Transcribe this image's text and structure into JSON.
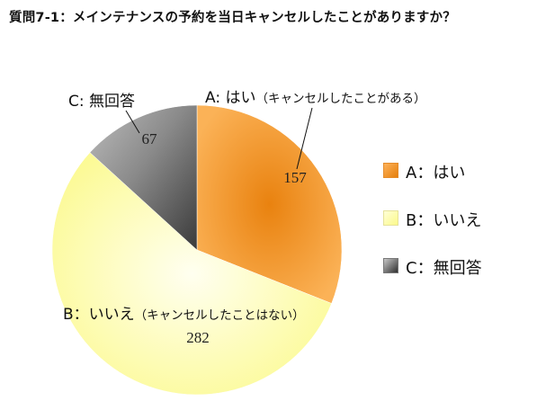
{
  "chart_data": {
    "type": "pie",
    "title": "質問7-1：メインテナンスの予約を当日キャンセルしたことがありますか？",
    "slices": [
      {
        "key": "A",
        "legend": "A：はい",
        "label": "A: はい",
        "note": "（キャンセルしたことがある）",
        "value": 157,
        "color": "#f7941e"
      },
      {
        "key": "B",
        "legend": "B：いいえ",
        "label": "B：いいえ",
        "note": "（キャンセルしたことはない）",
        "value": 282,
        "color": "#ffffa8"
      },
      {
        "key": "C",
        "legend": "C：無回答",
        "label": "C: 無回答",
        "note": "",
        "value": 67,
        "color": "#8c8c8c"
      }
    ],
    "legend_position": "right"
  }
}
